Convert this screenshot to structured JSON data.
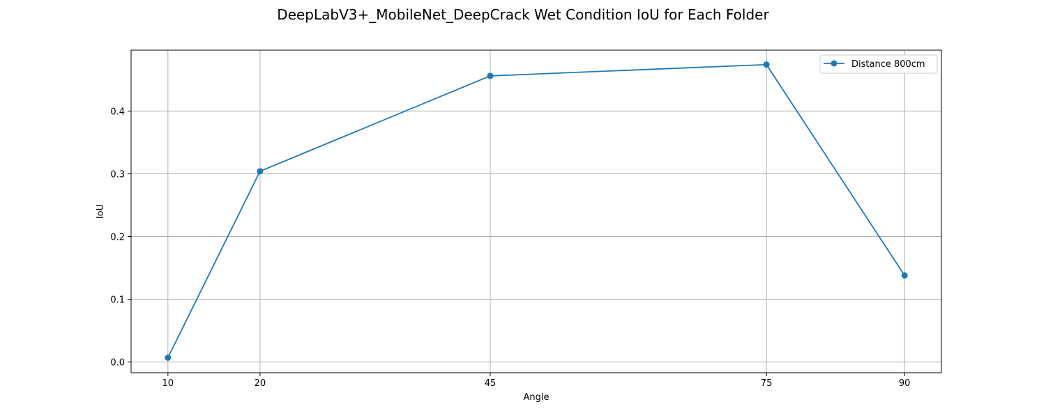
{
  "chart_data": {
    "type": "line",
    "title": "DeepLabV3+_MobileNet_DeepCrack Wet Condition IoU for Each Folder",
    "xlabel": "Angle",
    "ylabel": "IoU",
    "x": [
      10,
      20,
      45,
      75,
      90
    ],
    "xticks": [
      10,
      20,
      45,
      75,
      90
    ],
    "yticks": [
      0.0,
      0.1,
      0.2,
      0.3,
      0.4
    ],
    "ytick_labels": [
      "0.0",
      "0.1",
      "0.2",
      "0.3",
      "0.4"
    ],
    "xlim": [
      6.0,
      94.0
    ],
    "ylim": [
      -0.017,
      0.497
    ],
    "grid": true,
    "legend_position": "top-right",
    "series": [
      {
        "name": "Distance 800cm",
        "color": "#1f77b4",
        "marker": "circle",
        "values": [
          0.007,
          0.304,
          0.456,
          0.474,
          0.138
        ]
      }
    ]
  }
}
